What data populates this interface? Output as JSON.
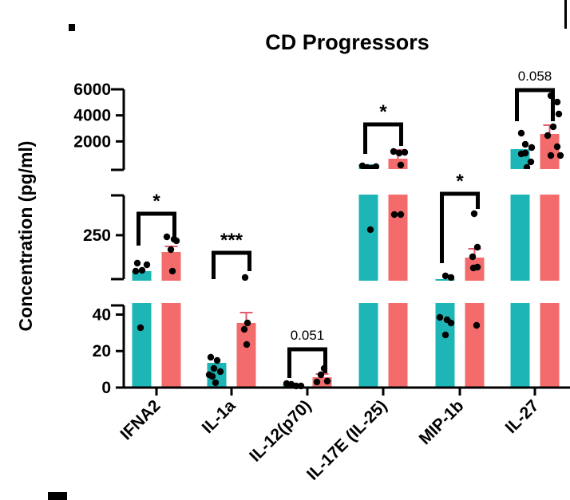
{
  "chart_data": {
    "type": "bar",
    "title": "CD Progressors",
    "ylabel": "Concentration (pg/ml)",
    "categories": [
      "IFNA2",
      "IL-1a",
      "IL-12(p70)",
      "IL-17E (IL-25)",
      "MIP-1b",
      "IL-27"
    ],
    "axis_breaks": true,
    "y_segments": [
      {
        "range": [
          0,
          45
        ],
        "ticks": [
          "0",
          "20",
          "40"
        ]
      },
      {
        "range": [
          70,
          390
        ],
        "ticks": [
          "250"
        ]
      },
      {
        "range": [
          0,
          6000
        ],
        "ticks": [
          "2000",
          "4000",
          "6000"
        ]
      }
    ],
    "colors": {
      "group_a": "#1db5b5",
      "group_b": "#f36b6b",
      "error_b": "#e35c6a"
    },
    "bars": [
      {
        "category": "IFNA2",
        "a": 143,
        "b": 190
      },
      {
        "category": "IL-1a",
        "a": 11,
        "b": 35
      },
      {
        "category": "IL-12(p70)",
        "a": 1.5,
        "b": 5
      },
      {
        "category": "IL-17E (IL-25)",
        "a": 900,
        "b": 1300
      },
      {
        "category": "MIP-1b",
        "a": 120,
        "b": 170
      },
      {
        "category": "IL-27",
        "a": 1900,
        "b": 3000
      }
    ],
    "significance": [
      "*",
      "***",
      "0.051",
      "*",
      "*",
      "0.058"
    ]
  }
}
